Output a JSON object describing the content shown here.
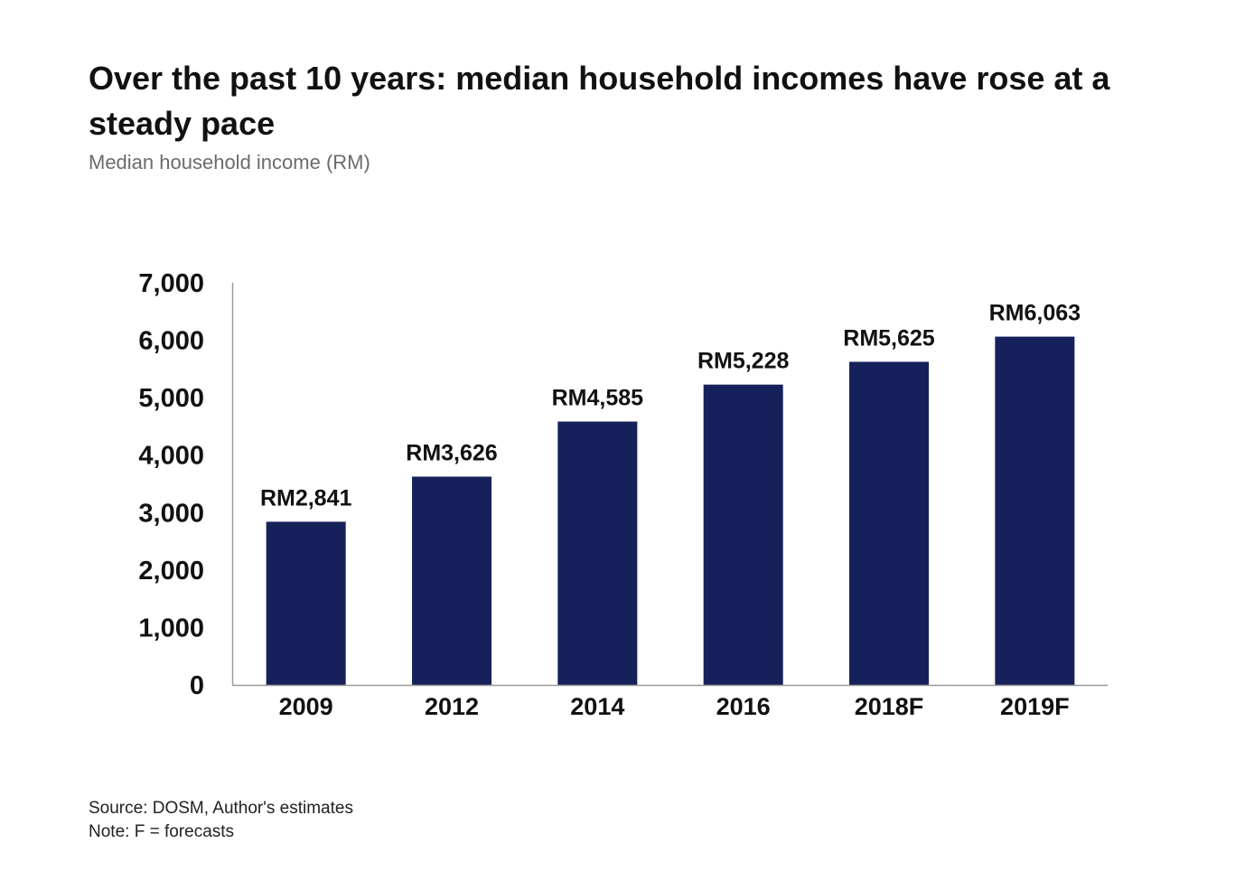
{
  "title": "Over the past 10 years: median household incomes have rose at a steady pace",
  "subtitle": "Median household income (RM)",
  "footer": {
    "source": "Source: DOSM, Author's estimates",
    "note": "Note: F = forecasts"
  },
  "chart_data": {
    "type": "bar",
    "title": "Over the past 10 years: median household incomes have rose at a steady pace",
    "subtitle": "Median household income (RM)",
    "categories": [
      "2009",
      "2012",
      "2014",
      "2016",
      "2018F",
      "2019F"
    ],
    "values": [
      2841,
      3626,
      4585,
      5228,
      5625,
      6063
    ],
    "data_labels": [
      "RM2,841",
      "RM3,626",
      "RM4,585",
      "RM5,228",
      "RM5,625",
      "RM6,063"
    ],
    "y_ticks": [
      "0",
      "1,000",
      "2,000",
      "3,000",
      "4,000",
      "5,000",
      "6,000",
      "7,000"
    ],
    "y_tick_values": [
      0,
      1000,
      2000,
      3000,
      4000,
      5000,
      6000,
      7000
    ],
    "ylim": [
      0,
      7000
    ],
    "grid": false,
    "legend": "none",
    "bar_color": "#16215b",
    "axis_color": "#9a9a9a"
  }
}
